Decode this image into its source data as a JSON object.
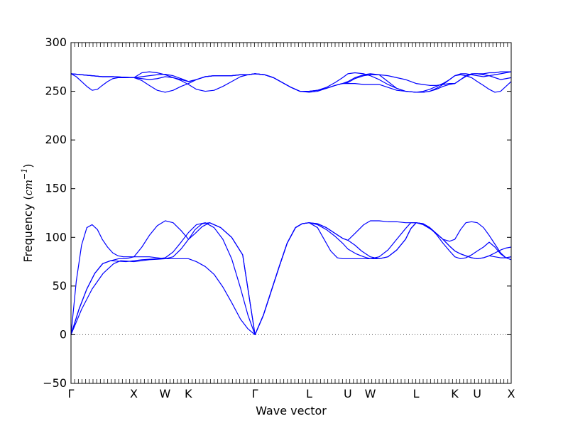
{
  "chart_data": {
    "type": "line",
    "title": "",
    "xlabel": "Wave vector",
    "ylabel": {
      "prefix": "Frequency (",
      "unit": "cm",
      "exponent": "−1",
      "suffix": ")"
    },
    "ylim": [
      -50,
      300
    ],
    "yticks": [
      -50,
      0,
      50,
      100,
      150,
      200,
      250,
      300
    ],
    "xlim": [
      0,
      1
    ],
    "x_ticks": [
      {
        "label": "Γ",
        "x": 0.0
      },
      {
        "label": "X",
        "x": 0.1427
      },
      {
        "label": "W",
        "x": 0.2135
      },
      {
        "label": "K",
        "x": 0.2666
      },
      {
        "label": "Γ",
        "x": 0.4178
      },
      {
        "label": "L",
        "x": 0.5411
      },
      {
        "label": "U",
        "x": 0.6289
      },
      {
        "label": "W",
        "x": 0.6799
      },
      {
        "label": "L",
        "x": 0.784
      },
      {
        "label": "K",
        "x": 0.8718
      },
      {
        "label": "U",
        "x": 0.9227
      },
      {
        "label": "X",
        "x": 1.0
      }
    ],
    "zero_line": {
      "y": 0,
      "style": "dotted",
      "color": "#555555"
    },
    "series_color": "#0000ff",
    "series": [
      {
        "x": [
          0,
          0.024,
          0.048,
          0.073,
          0.097,
          0.113,
          0.129,
          0.143,
          0.161,
          0.178,
          0.196,
          0.214,
          0.232,
          0.25,
          0.267,
          0.285,
          0.305,
          0.325,
          0.345,
          0.365,
          0.385,
          0.402,
          0.418,
          0.437,
          0.455,
          0.473,
          0.491,
          0.51,
          0.525,
          0.541,
          0.56,
          0.58,
          0.6,
          0.617,
          0.629,
          0.648,
          0.665,
          0.68,
          0.7,
          0.72,
          0.74,
          0.76,
          0.772,
          0.784,
          0.8,
          0.815,
          0.83,
          0.845,
          0.86,
          0.872,
          0.885,
          0.897,
          0.91,
          0.923,
          0.937,
          0.95,
          0.963,
          0.976,
          0.988,
          1.0
        ],
        "y": [
          0,
          26,
          47,
          63,
          73,
          76,
          75.5,
          75,
          76,
          77,
          77.5,
          78,
          78,
          78,
          78,
          75,
          70,
          62,
          49,
          33,
          16,
          6,
          0,
          20,
          45,
          70,
          94,
          110,
          114,
          115,
          113,
          108,
          101,
          94,
          88,
          83,
          80,
          78,
          78,
          80,
          87,
          98,
          109,
          115,
          114,
          110,
          103,
          94,
          86,
          80,
          78,
          79,
          82,
          86,
          90,
          95,
          90,
          83,
          79,
          77
        ]
      },
      {
        "x": [
          0,
          0.018,
          0.036,
          0.054,
          0.072,
          0.09,
          0.108,
          0.125,
          0.143,
          0.161,
          0.178,
          0.196,
          0.214,
          0.232,
          0.25,
          0.267,
          0.285,
          0.305,
          0.325,
          0.345,
          0.365,
          0.385,
          0.402,
          0.418,
          0.437,
          0.455,
          0.473,
          0.491,
          0.51,
          0.525,
          0.541,
          0.56,
          0.575,
          0.59,
          0.605,
          0.617,
          0.629,
          0.645,
          0.66,
          0.68,
          0.7,
          0.72,
          0.74,
          0.76,
          0.772,
          0.784,
          0.8,
          0.815,
          0.83,
          0.845,
          0.86,
          0.872,
          0.885,
          0.897,
          0.91,
          0.923,
          0.937,
          0.95,
          0.963,
          0.976,
          0.988,
          1.0
        ],
        "y": [
          0,
          26,
          47,
          63,
          73,
          76,
          75.5,
          75,
          76,
          77,
          77.5,
          78,
          79,
          85,
          95,
          105,
          113,
          115,
          110,
          98,
          78,
          48,
          20,
          0,
          20,
          45,
          70,
          94,
          110,
          114,
          115,
          110,
          98,
          86,
          79,
          78,
          78,
          78,
          78,
          78,
          80,
          87,
          98,
          109,
          115,
          115,
          114,
          110,
          104,
          98,
          91,
          86,
          83,
          81,
          79,
          78,
          79,
          81,
          80,
          79,
          79,
          80
        ]
      },
      {
        "x": [
          0,
          0.012,
          0.024,
          0.036,
          0.048,
          0.06,
          0.071,
          0.083,
          0.095,
          0.107,
          0.119,
          0.131,
          0.143,
          0.161,
          0.178,
          0.196,
          0.214,
          0.232,
          0.25,
          0.267,
          0.282,
          0.298,
          0.315,
          0.34,
          0.365,
          0.39,
          0.418,
          0.437,
          0.455,
          0.473,
          0.491,
          0.51,
          0.525,
          0.541,
          0.56,
          0.58,
          0.6,
          0.617,
          0.629,
          0.645,
          0.66,
          0.68,
          0.7,
          0.72,
          0.74,
          0.76,
          0.772,
          0.784,
          0.8,
          0.815,
          0.83,
          0.845,
          0.86,
          0.872,
          0.885,
          0.897,
          0.91,
          0.923,
          0.937,
          0.95,
          0.963,
          0.976,
          0.988,
          1.0
        ],
        "y": [
          0,
          55,
          92,
          110,
          113,
          108,
          98,
          90,
          84,
          81,
          80,
          80,
          80,
          80,
          80,
          79,
          78,
          80,
          88,
          98,
          108,
          114,
          115,
          110,
          100,
          82,
          0,
          20,
          45,
          70,
          94,
          110,
          114,
          115,
          114,
          110,
          104,
          99,
          97,
          92,
          86,
          80,
          78,
          80,
          87,
          98,
          109,
          115,
          114,
          110,
          104,
          98,
          91,
          86,
          83,
          81,
          79,
          78,
          79,
          81,
          84,
          87,
          89,
          90
        ]
      },
      {
        "x": [
          0,
          0.018,
          0.036,
          0.054,
          0.072,
          0.09,
          0.108,
          0.125,
          0.143,
          0.161,
          0.178,
          0.196,
          0.214,
          0.232,
          0.25,
          0.267,
          0.282,
          0.298,
          0.315,
          0.34,
          0.365,
          0.39,
          0.418,
          0.437,
          0.455,
          0.473,
          0.491,
          0.51,
          0.525,
          0.541,
          0.56,
          0.58,
          0.6,
          0.617,
          0.629,
          0.645,
          0.665,
          0.68,
          0.7,
          0.72,
          0.74,
          0.76,
          0.772,
          0.784,
          0.8,
          0.815,
          0.83,
          0.845,
          0.86,
          0.872,
          0.885,
          0.897,
          0.91,
          0.923,
          0.937,
          0.95,
          0.963,
          0.976,
          0.988,
          1.0
        ],
        "y": [
          0,
          26,
          47,
          63,
          73,
          76,
          78,
          78,
          80,
          90,
          102,
          112,
          117,
          115,
          107,
          98,
          104,
          111,
          115,
          110,
          100,
          82,
          0,
          20,
          45,
          70,
          94,
          110,
          114,
          115,
          114,
          110,
          104,
          99,
          97,
          104,
          113,
          117,
          117,
          116,
          116,
          115,
          115,
          115,
          113,
          109,
          104,
          98,
          96,
          98,
          108,
          115,
          116,
          115,
          110,
          102,
          93,
          84,
          79,
          80
        ]
      },
      {
        "x": [
          0,
          0.024,
          0.048,
          0.071,
          0.095,
          0.119,
          0.143,
          0.161,
          0.178,
          0.196,
          0.214,
          0.232,
          0.25,
          0.267,
          0.285,
          0.305,
          0.325,
          0.345,
          0.365,
          0.385,
          0.402,
          0.418,
          0.44,
          0.46,
          0.48,
          0.5,
          0.52,
          0.541,
          0.56,
          0.58,
          0.6,
          0.617,
          0.629,
          0.645,
          0.665,
          0.68,
          0.7,
          0.72,
          0.74,
          0.76,
          0.784,
          0.8,
          0.815,
          0.83,
          0.845,
          0.86,
          0.872,
          0.885,
          0.9,
          0.915,
          0.923,
          0.937,
          0.95,
          0.963,
          0.976,
          0.988,
          1.0
        ],
        "y": [
          268,
          267,
          266,
          265,
          265,
          264.5,
          264,
          263,
          262,
          263,
          265,
          264,
          261,
          257,
          252,
          250,
          251,
          255,
          260,
          265,
          267,
          268,
          267,
          264,
          259,
          254,
          250,
          249,
          250,
          253,
          256,
          258,
          258,
          258,
          257,
          257,
          257,
          254,
          251,
          250,
          249,
          249,
          250,
          252,
          255,
          257,
          258,
          262,
          266,
          268,
          268,
          267,
          266,
          264,
          262,
          263,
          264
        ]
      },
      {
        "x": [
          0,
          0.012,
          0.024,
          0.036,
          0.048,
          0.06,
          0.071,
          0.083,
          0.095,
          0.107,
          0.119,
          0.131,
          0.143,
          0.161,
          0.178,
          0.196,
          0.214,
          0.232,
          0.25,
          0.267,
          0.285,
          0.305,
          0.325,
          0.345,
          0.365,
          0.385,
          0.402,
          0.418,
          0.44,
          0.46,
          0.48,
          0.5,
          0.52,
          0.541,
          0.56,
          0.58,
          0.6,
          0.617,
          0.629,
          0.645,
          0.665,
          0.68,
          0.7,
          0.72,
          0.74,
          0.76,
          0.784,
          0.8,
          0.815,
          0.83,
          0.845,
          0.86,
          0.872,
          0.885,
          0.897,
          0.91,
          0.923,
          0.937,
          0.95,
          0.963,
          0.976,
          0.988,
          1.0
        ],
        "y": [
          268,
          265,
          260,
          255,
          251,
          252,
          256,
          260,
          263,
          264,
          264,
          264,
          264,
          261,
          256,
          251,
          249,
          251,
          255,
          258,
          262,
          265,
          266,
          266,
          266,
          267,
          267,
          268,
          267,
          264,
          259,
          254,
          250,
          250,
          251,
          253,
          256,
          258,
          259,
          263,
          266,
          267,
          267,
          266,
          264,
          262,
          258,
          257,
          256,
          256,
          257,
          258,
          258,
          262,
          266,
          268,
          268,
          268,
          269,
          269,
          270,
          270,
          270
        ]
      },
      {
        "x": [
          0,
          0.024,
          0.048,
          0.071,
          0.095,
          0.119,
          0.143,
          0.161,
          0.178,
          0.196,
          0.214,
          0.232,
          0.25,
          0.267,
          0.285,
          0.305,
          0.325,
          0.345,
          0.365,
          0.385,
          0.402,
          0.418,
          0.44,
          0.46,
          0.48,
          0.5,
          0.52,
          0.541,
          0.56,
          0.58,
          0.6,
          0.617,
          0.629,
          0.645,
          0.665,
          0.68,
          0.7,
          0.72,
          0.74,
          0.76,
          0.784,
          0.8,
          0.815,
          0.83,
          0.845,
          0.86,
          0.872,
          0.885,
          0.897,
          0.91,
          0.923,
          0.937,
          0.95,
          0.963,
          0.976,
          0.988,
          1.0
        ],
        "y": [
          268,
          267,
          266,
          265,
          265,
          264.5,
          264,
          265,
          266,
          267,
          267.5,
          266,
          263,
          260,
          262,
          265,
          266,
          266,
          266,
          267,
          267,
          268,
          267,
          264,
          259,
          254,
          250,
          250,
          251,
          253,
          256,
          258,
          260,
          264,
          267,
          268,
          267,
          260,
          253,
          250,
          249,
          249,
          250,
          253,
          257,
          262,
          266,
          267,
          266,
          264,
          260,
          256,
          252,
          249,
          250,
          255,
          260
        ]
      },
      {
        "x": [
          0,
          0.024,
          0.048,
          0.071,
          0.095,
          0.119,
          0.143,
          0.161,
          0.178,
          0.196,
          0.214,
          0.232,
          0.25,
          0.267,
          0.285,
          0.305,
          0.325,
          0.345,
          0.365,
          0.385,
          0.402,
          0.418,
          0.44,
          0.46,
          0.48,
          0.5,
          0.52,
          0.541,
          0.56,
          0.58,
          0.6,
          0.617,
          0.629,
          0.645,
          0.665,
          0.68,
          0.7,
          0.72,
          0.74,
          0.76,
          0.784,
          0.8,
          0.815,
          0.83,
          0.845,
          0.86,
          0.872,
          0.885,
          0.897,
          0.91,
          0.923,
          0.937,
          0.95,
          0.963,
          0.976,
          0.988,
          1.0
        ],
        "y": [
          268,
          267,
          266,
          265,
          265,
          264.5,
          264,
          269,
          270,
          269,
          267,
          264,
          262,
          260,
          262,
          265,
          266,
          266,
          266,
          267,
          267,
          268,
          267,
          264,
          259,
          254,
          250,
          250,
          251,
          254,
          259,
          264,
          268,
          269,
          268,
          266,
          262,
          257,
          253,
          250,
          249,
          250,
          252,
          255,
          258,
          262,
          266,
          268,
          268,
          267,
          266,
          265,
          266,
          267,
          268,
          269,
          270
        ]
      }
    ]
  }
}
